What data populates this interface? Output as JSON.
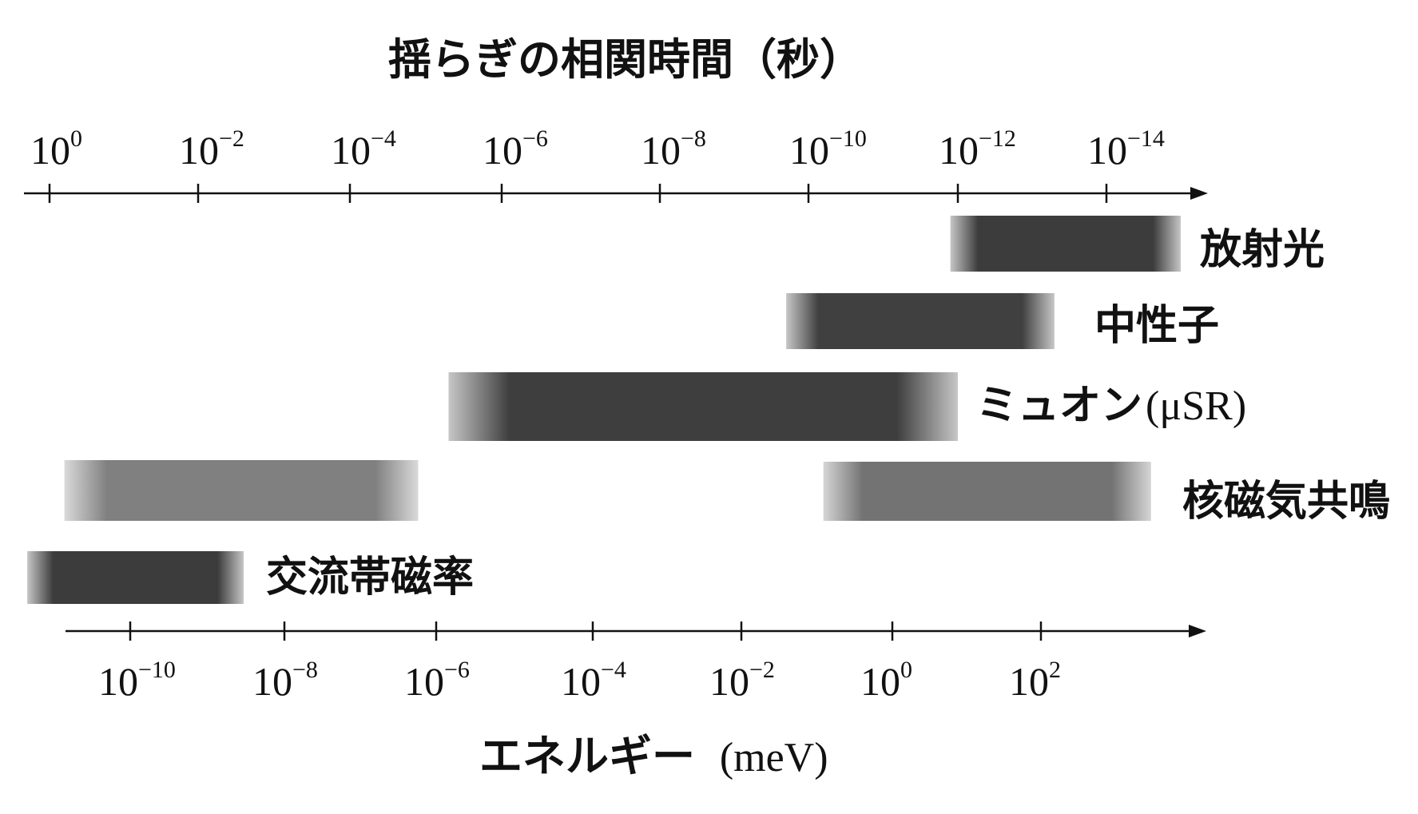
{
  "top_axis": {
    "title": "揺らぎの相関時間（秒）",
    "ticks": [
      {
        "base": "10",
        "exp": "0"
      },
      {
        "base": "10",
        "exp": "−2"
      },
      {
        "base": "10",
        "exp": "−4"
      },
      {
        "base": "10",
        "exp": "−6"
      },
      {
        "base": "10",
        "exp": "−8"
      },
      {
        "base": "10",
        "exp": "−10"
      },
      {
        "base": "10",
        "exp": "−12"
      },
      {
        "base": "10",
        "exp": "−14"
      }
    ]
  },
  "bottom_axis": {
    "title_prefix": "エネルギー",
    "title_unit": "(meV)",
    "ticks": [
      {
        "base": "10",
        "exp": "−10"
      },
      {
        "base": "10",
        "exp": "−8"
      },
      {
        "base": "10",
        "exp": "−6"
      },
      {
        "base": "10",
        "exp": "−4"
      },
      {
        "base": "10",
        "exp": "−2"
      },
      {
        "base": "10",
        "exp": "0"
      },
      {
        "base": "10",
        "exp": "2"
      }
    ]
  },
  "methods": [
    {
      "label": "放射光",
      "suffix": "",
      "range_seconds_log10": [
        -11.9,
        -15.0
      ],
      "shade": "#1a1a1a"
    },
    {
      "label": "中性子",
      "suffix": "",
      "range_seconds_log10": [
        -9.7,
        -13.3
      ],
      "shade": "#1e1e1e"
    },
    {
      "label": "ミュオン",
      "suffix": "(μSR)",
      "range_seconds_log10": [
        -5.3,
        -12.0
      ],
      "shade": "#1c1c1c"
    },
    {
      "label": "核磁気共鳴",
      "suffix": "",
      "range_seconds_log10": [
        -0.2,
        -4.9
      ],
      "shade": "#6a6a6a"
    },
    {
      "label": "核磁気共鳴",
      "suffix": "",
      "range_seconds_log10": [
        -10.2,
        -14.6
      ],
      "shade": "#5a5a5a"
    },
    {
      "label": "交流帯磁率",
      "suffix": "",
      "range_seconds_log10": [
        0.3,
        -2.6
      ],
      "shade": "#1a1a1a"
    }
  ]
}
